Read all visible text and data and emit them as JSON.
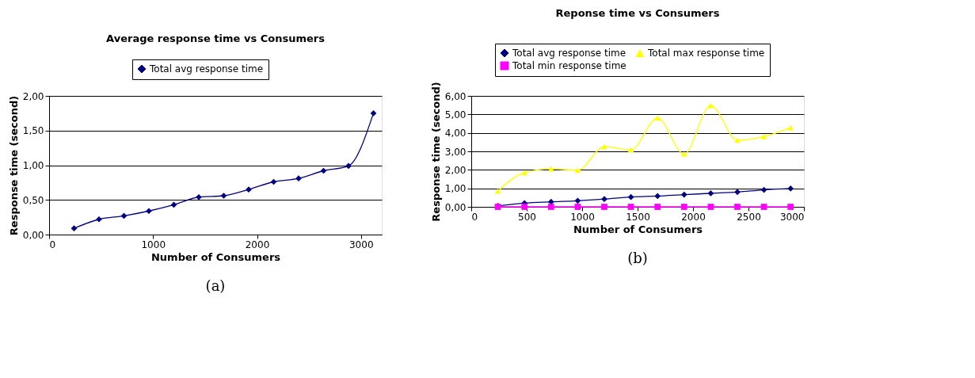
{
  "chart_data": [
    {
      "type": "line",
      "title": "Average response time vs Consumers",
      "xlabel": "Number of Consumers",
      "ylabel": "Response time (second)",
      "annotations": [
        "(a)"
      ],
      "legend": "top",
      "grid": "y",
      "line_style": "solid",
      "x": [
        240,
        480,
        720,
        960,
        1200,
        1440,
        1680,
        1920,
        2160,
        2400,
        2640,
        2880,
        3120
      ],
      "xlim": [
        0,
        3200
      ],
      "xticks": [
        0,
        1000,
        2000,
        3000
      ],
      "ylim": [
        0,
        2
      ],
      "yticks": [
        {
          "value": 0,
          "label": "0,00"
        },
        {
          "value": 0.5,
          "label": "0,50"
        },
        {
          "value": 1,
          "label": "1,00"
        },
        {
          "value": 1.5,
          "label": "1,50"
        },
        {
          "value": 2,
          "label": "2,00"
        }
      ],
      "series": [
        {
          "name": "Total avg response time",
          "color": "#000080",
          "marker": "diamond",
          "values": [
            0.09,
            0.22,
            0.27,
            0.34,
            0.43,
            0.54,
            0.56,
            0.65,
            0.76,
            0.81,
            0.92,
            0.99,
            1.75
          ]
        }
      ]
    },
    {
      "type": "line",
      "title": "Reponse time vs Consumers",
      "xlabel": "Number of Consumers",
      "ylabel": "Response time (second)",
      "annotations": [
        "(b)"
      ],
      "legend": "top",
      "grid": "y",
      "line_style": "solid",
      "x": [
        240,
        480,
        720,
        960,
        1200,
        1440,
        1680,
        1920,
        2160,
        2400,
        2640,
        2880
      ],
      "xlim": [
        0,
        3000
      ],
      "xticks": [
        0,
        500,
        1000,
        1500,
        2000,
        2500,
        3000
      ],
      "ylim": [
        0,
        6
      ],
      "yticks": [
        {
          "value": 0,
          "label": "0,00"
        },
        {
          "value": 1,
          "label": "1,00"
        },
        {
          "value": 2,
          "label": "2,00"
        },
        {
          "value": 3,
          "label": "3,00"
        },
        {
          "value": 4,
          "label": "4,00"
        },
        {
          "value": 5,
          "label": "5,00"
        },
        {
          "value": 6,
          "label": "6,00"
        }
      ],
      "series": [
        {
          "name": "Total avg response time",
          "color": "#000080",
          "marker": "diamond",
          "values": [
            0.05,
            0.2,
            0.27,
            0.33,
            0.42,
            0.53,
            0.58,
            0.66,
            0.73,
            0.8,
            0.92,
            0.99
          ]
        },
        {
          "name": "Total min response time",
          "color": "#ff00ff",
          "marker": "square",
          "values": [
            0,
            0,
            0,
            0,
            0,
            0,
            0,
            0,
            0,
            0,
            0,
            0
          ]
        },
        {
          "name": "Total max response time",
          "color": "#ffff00",
          "marker": "triangle",
          "values": [
            0.85,
            1.85,
            2.05,
            1.98,
            3.25,
            3.08,
            4.8,
            2.85,
            5.48,
            3.6,
            3.8,
            4.28
          ]
        }
      ]
    }
  ]
}
